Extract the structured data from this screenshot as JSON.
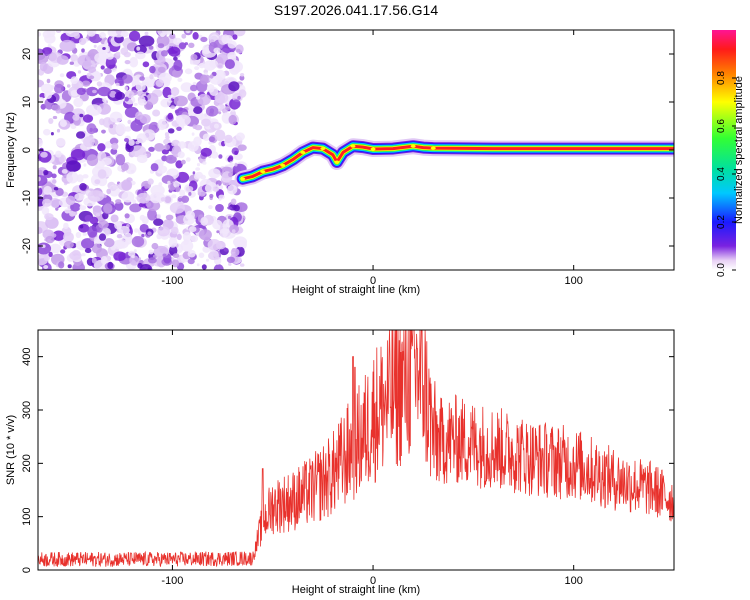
{
  "title": "S197.2026.041.17.56.G14",
  "chart_data": [
    {
      "type": "heatmap",
      "name": "spectrogram",
      "xlabel": "Height of straight line (km)",
      "ylabel": "Frequency (Hz)",
      "xlim": [
        -167,
        150
      ],
      "ylim": [
        -25,
        25
      ],
      "xticks": [
        -100,
        0,
        100
      ],
      "yticks": [
        -20,
        -10,
        0,
        10,
        20
      ],
      "colorbar": {
        "label": "Normalized spectral amplitude",
        "range": [
          0,
          1
        ],
        "ticks": [
          "0.0",
          "0.2",
          "0.4",
          "0.6",
          "0.8"
        ],
        "tick_values": [
          0,
          0.2,
          0.4,
          0.6,
          0.8
        ]
      },
      "noise_region_x": [
        -167,
        -65
      ],
      "signal_trace": [
        {
          "x": -65,
          "f": -6.0
        },
        {
          "x": -60,
          "f": -5.5
        },
        {
          "x": -55,
          "f": -4.5
        },
        {
          "x": -50,
          "f": -4.0
        },
        {
          "x": -45,
          "f": -3.2
        },
        {
          "x": -40,
          "f": -2.0
        },
        {
          "x": -35,
          "f": -0.5
        },
        {
          "x": -30,
          "f": 0.5
        },
        {
          "x": -25,
          "f": 0.3
        },
        {
          "x": -20,
          "f": -1.0
        },
        {
          "x": -18,
          "f": -2.5
        },
        {
          "x": -15,
          "f": -0.5
        },
        {
          "x": -10,
          "f": 0.8
        },
        {
          "x": -5,
          "f": 0.6
        },
        {
          "x": 0,
          "f": 0.2
        },
        {
          "x": 10,
          "f": 0.3
        },
        {
          "x": 20,
          "f": 0.8
        },
        {
          "x": 25,
          "f": 0.5
        },
        {
          "x": 30,
          "f": 0.4
        },
        {
          "x": 60,
          "f": 0.3
        },
        {
          "x": 100,
          "f": 0.3
        },
        {
          "x": 150,
          "f": 0.3
        }
      ]
    },
    {
      "type": "line",
      "name": "snr",
      "xlabel": "Height of straight line (km)",
      "ylabel": "SNR (10 * v/v)",
      "xlim": [
        -167,
        150
      ],
      "ylim": [
        0,
        450
      ],
      "xticks": [
        -100,
        0,
        100
      ],
      "yticks": [
        0,
        100,
        200,
        300,
        400
      ],
      "color": "#e8312c",
      "envelope": {
        "x": [
          -167,
          -100,
          -60,
          -55,
          -50,
          -40,
          -30,
          -20,
          -10,
          -5,
          0,
          10,
          20,
          25,
          30,
          32,
          40,
          60,
          80,
          100,
          120,
          140,
          150
        ],
        "y": [
          20,
          20,
          22,
          90,
          120,
          130,
          150,
          180,
          230,
          250,
          290,
          330,
          370,
          360,
          250,
          240,
          245,
          230,
          210,
          200,
          170,
          150,
          130
        ]
      },
      "spikes": [
        {
          "x": -10,
          "y": 400
        },
        {
          "x": -9,
          "y": 380
        },
        {
          "x": 20,
          "y": 450
        },
        {
          "x": 22,
          "y": 415
        },
        {
          "x": -55,
          "y": 190
        }
      ]
    }
  ]
}
